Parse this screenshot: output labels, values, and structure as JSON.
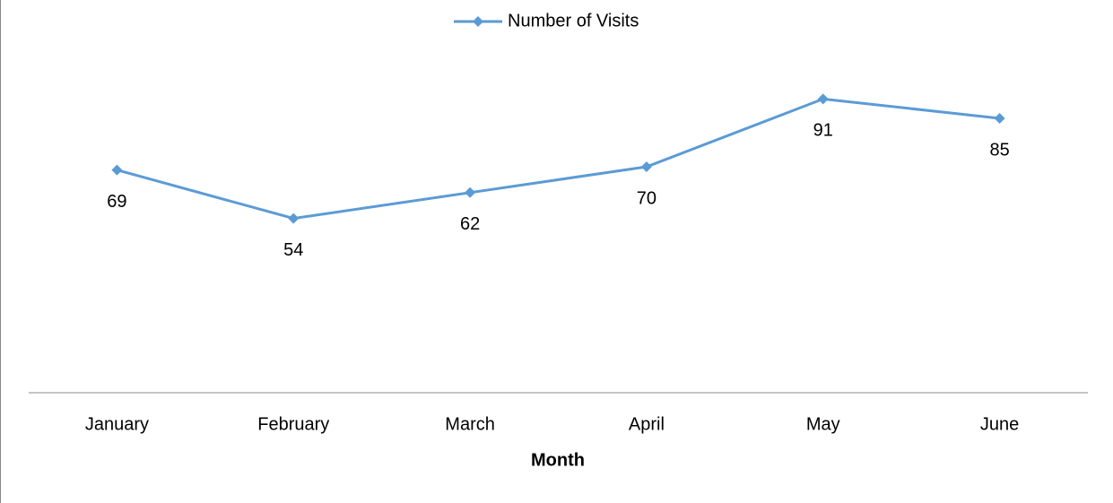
{
  "chart_data": {
    "type": "line",
    "categories": [
      "January",
      "February",
      "March",
      "April",
      "May",
      "June"
    ],
    "series": [
      {
        "name": "Number of Visits",
        "color": "#5b9bd5",
        "values": [
          69,
          54,
          62,
          70,
          91,
          85
        ]
      }
    ],
    "xlabel": "Month",
    "ylim": [
      0,
      100
    ],
    "legend": "top"
  }
}
